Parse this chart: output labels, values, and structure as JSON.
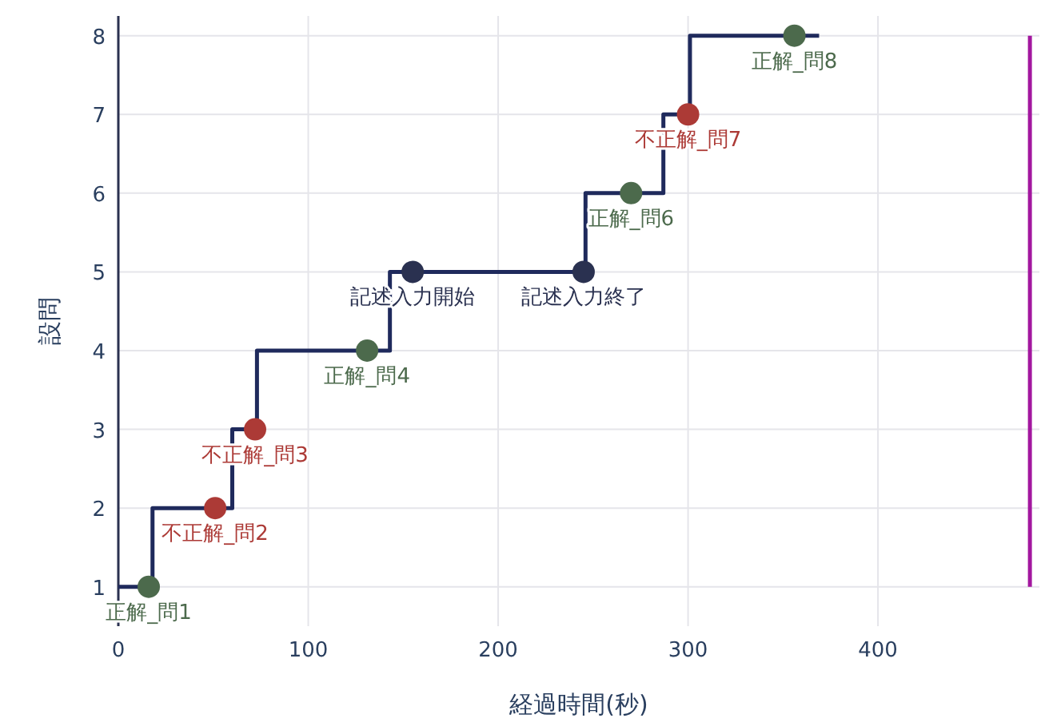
{
  "chart_data": {
    "type": "step",
    "xlabel": "経過時間(秒)",
    "ylabel": "設問",
    "xlim": [
      0,
      485
    ],
    "xticks": [
      0,
      100,
      200,
      300,
      400
    ],
    "ylim": [
      0.5,
      8.25
    ],
    "yticks": [
      1,
      2,
      3,
      4,
      5,
      6,
      7,
      8
    ],
    "grid": true,
    "series": [
      {
        "color": "#1f2a5c",
        "x": [
          0,
          18,
          60,
          73,
          143,
          246,
          287,
          301,
          369
        ],
        "values": [
          1,
          2,
          3,
          4,
          5,
          6,
          7,
          8,
          8
        ]
      },
      {
        "type": "line",
        "color": "#a3179f",
        "x": [
          480,
          480
        ],
        "values": [
          1,
          8
        ]
      },
      {
        "type": "scatter",
        "marker": "circle",
        "color": "#4c6a4c",
        "x": [
          16,
          131,
          270,
          356
        ],
        "values": [
          1,
          4,
          6,
          8
        ],
        "value_labels": [
          "正解_問1",
          "正解_問4",
          "正解_問6",
          "正解_問8"
        ]
      },
      {
        "type": "scatter",
        "marker": "circle",
        "color": "#ac3a36",
        "x": [
          51,
          72,
          300
        ],
        "values": [
          2,
          3,
          7
        ],
        "value_labels": [
          "不正解_問2",
          "不正解_問3",
          "不正解_問7"
        ]
      },
      {
        "type": "scatter",
        "marker": "circle",
        "color": "#2a3150",
        "x": [
          155,
          245
        ],
        "values": [
          5,
          5
        ],
        "value_labels": [
          "記述入力開始",
          "記述入力終了"
        ]
      }
    ]
  }
}
